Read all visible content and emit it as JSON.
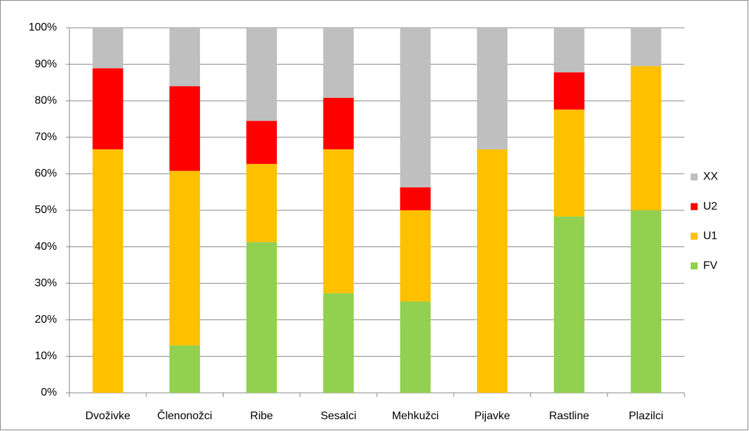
{
  "chart_data": {
    "type": "stacked_bar",
    "categories": [
      "Dvoživke",
      "Členonožci",
      "Ribe",
      "Sesalci",
      "Mehkužci",
      "Pijavke",
      "Rastline",
      "Plazilci"
    ],
    "series": [
      {
        "name": "FV",
        "color": "#92d050",
        "values": [
          0,
          13.0,
          41.3,
          27.3,
          25.0,
          0,
          48.3,
          50.0
        ]
      },
      {
        "name": "U1",
        "color": "#ffc000",
        "values": [
          66.7,
          47.8,
          21.4,
          39.4,
          25.0,
          66.7,
          29.3,
          39.5
        ]
      },
      {
        "name": "U2",
        "color": "#ff0000",
        "values": [
          22.2,
          23.2,
          11.8,
          14.1,
          6.3,
          0,
          10.2,
          0
        ]
      },
      {
        "name": "XX",
        "color": "#bfbfbf",
        "values": [
          11.1,
          16.0,
          25.5,
          19.2,
          43.7,
          33.3,
          12.2,
          10.5
        ]
      }
    ],
    "ylim": [
      0,
      100
    ],
    "yticks": [
      {
        "value": 0,
        "label": "0%"
      },
      {
        "value": 10,
        "label": "10%"
      },
      {
        "value": 20,
        "label": "20%"
      },
      {
        "value": 30,
        "label": "30%"
      },
      {
        "value": 40,
        "label": "40%"
      },
      {
        "value": 50,
        "label": "50%"
      },
      {
        "value": 60,
        "label": "60%"
      },
      {
        "value": 70,
        "label": "70%"
      },
      {
        "value": 80,
        "label": "80%"
      },
      {
        "value": 90,
        "label": "90%"
      },
      {
        "value": 100,
        "label": "100%"
      }
    ],
    "grid": true,
    "legend": "right"
  }
}
